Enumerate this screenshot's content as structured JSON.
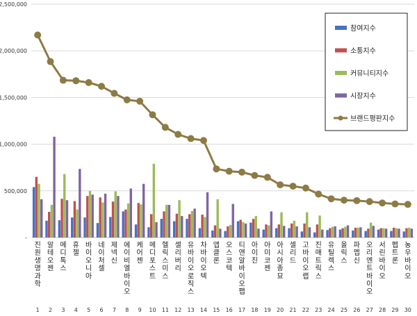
{
  "chart_data": {
    "type": "bar",
    "ylim": [
      0,
      2500000
    ],
    "yticks": [
      "-",
      "500,000",
      "1,000,000",
      "1,500,000",
      "2,000,000",
      "2,500,000"
    ],
    "categories": [
      "진원생명과학",
      "알테오젠",
      "메디톡스",
      "휴젤",
      "바이오니아",
      "네이처셀",
      "제넥신",
      "에이비엘바이오",
      "케어젠",
      "메디포스트",
      "헬릭스미스",
      "셀리버리",
      "유바이오로직스",
      "차바이오텍",
      "앱클론",
      "오스코텍",
      "티앤알바이오팹",
      "아이진",
      "아미코젠",
      "아시아종묘",
      "셀리드",
      "고바이오랩",
      "진매트릭스",
      "유틸렉스",
      "올릭스",
      "파멥신",
      "오리엔트바이오",
      "서린바이오",
      "펩트론",
      "농우바이오"
    ],
    "index_labels": [
      "1",
      "2",
      "3",
      "4",
      "5",
      "6",
      "7",
      "8",
      "9",
      "10",
      "11",
      "12",
      "13",
      "14",
      "15",
      "16",
      "17",
      "18",
      "19",
      "20",
      "21",
      "22",
      "23",
      "24",
      "25",
      "26",
      "27",
      "28",
      "29",
      "30"
    ],
    "series": [
      {
        "name": "참여지수",
        "kind": "bar",
        "color": "#4472C4",
        "values": [
          540000,
          180000,
          185000,
          215000,
          215000,
          155000,
          220000,
          280000,
          140000,
          110000,
          200000,
          175000,
          200000,
          100000,
          75000,
          70000,
          175000,
          160000,
          85000,
          100000,
          100000,
          65000,
          55000,
          80000,
          85000,
          75000,
          70000,
          85000,
          70000,
          65000
        ]
      },
      {
        "name": "소통지수",
        "kind": "bar",
        "color": "#C0504D",
        "values": [
          650000,
          275000,
          415000,
          390000,
          445000,
          430000,
          385000,
          300000,
          370000,
          250000,
          280000,
          255000,
          250000,
          245000,
          130000,
          120000,
          190000,
          200000,
          140000,
          140000,
          150000,
          150000,
          140000,
          100000,
          100000,
          105000,
          95000,
          100000,
          105000,
          100000
        ]
      },
      {
        "name": "커뮤니티지수",
        "kind": "bar",
        "color": "#9BBB59",
        "values": [
          575000,
          350000,
          680000,
          300000,
          500000,
          375000,
          495000,
          365000,
          355000,
          790000,
          350000,
          400000,
          285000,
          220000,
          410000,
          135000,
          165000,
          230000,
          130000,
          270000,
          180000,
          270000,
          235000,
          115000,
          115000,
          105000,
          160000,
          100000,
          100000,
          105000
        ]
      },
      {
        "name": "시장지수",
        "kind": "bar",
        "color": "#8064A2",
        "values": [
          410000,
          1080000,
          400000,
          735000,
          460000,
          470000,
          445000,
          525000,
          575000,
          165000,
          350000,
          230000,
          310000,
          485000,
          95000,
          360000,
          150000,
          95000,
          280000,
          125000,
          120000,
          110000,
          85000,
          120000,
          130000,
          110000,
          125000,
          95000,
          95000,
          95000
        ]
      },
      {
        "name": "브랜드평판지수",
        "kind": "line",
        "color": "#8C7B45",
        "values": [
          2170000,
          1885000,
          1685000,
          1680000,
          1660000,
          1620000,
          1545000,
          1475000,
          1460000,
          1315000,
          1180000,
          1105000,
          1060000,
          1040000,
          735000,
          710000,
          700000,
          665000,
          645000,
          565000,
          550000,
          530000,
          465000,
          415000,
          400000,
          395000,
          385000,
          370000,
          360000,
          355000
        ]
      }
    ]
  }
}
